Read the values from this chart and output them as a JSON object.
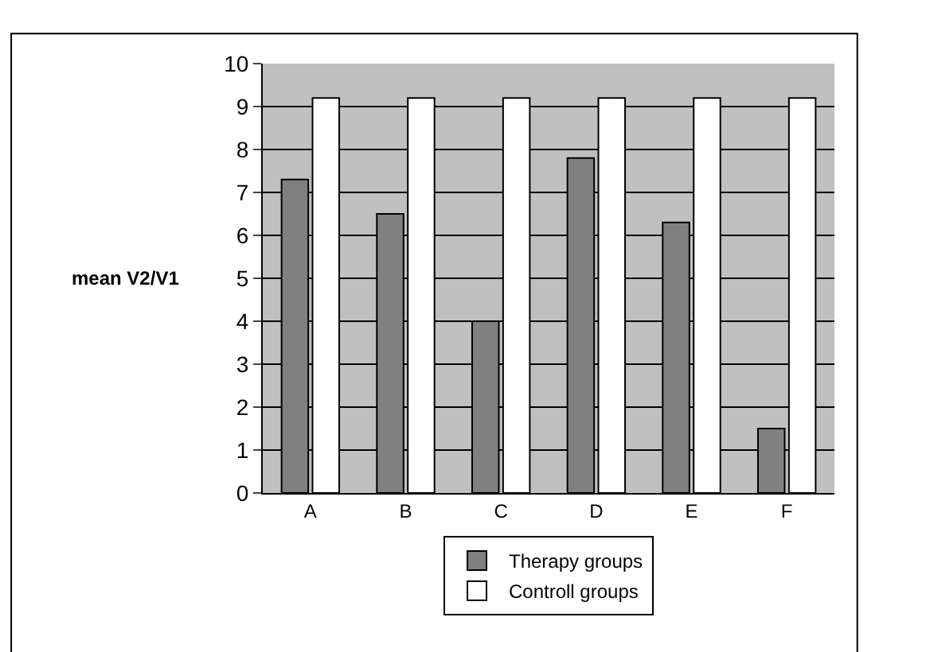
{
  "chart_data": {
    "type": "bar",
    "ylabel": "mean V2/V1",
    "categories": [
      "A",
      "B",
      "C",
      "D",
      "E",
      "F"
    ],
    "series": [
      {
        "name": "Therapy groups",
        "color": "#808080",
        "values": [
          7.3,
          6.5,
          4.0,
          7.8,
          6.3,
          1.5
        ]
      },
      {
        "name": "Controll groups",
        "color": "#ffffff",
        "values": [
          9.2,
          9.2,
          9.2,
          9.2,
          9.2,
          9.2
        ]
      }
    ],
    "ylim": [
      0,
      10
    ],
    "yticks": [
      0,
      1,
      2,
      3,
      4,
      5,
      6,
      7,
      8,
      9,
      10
    ],
    "grid": "y",
    "legend": "bottom"
  }
}
